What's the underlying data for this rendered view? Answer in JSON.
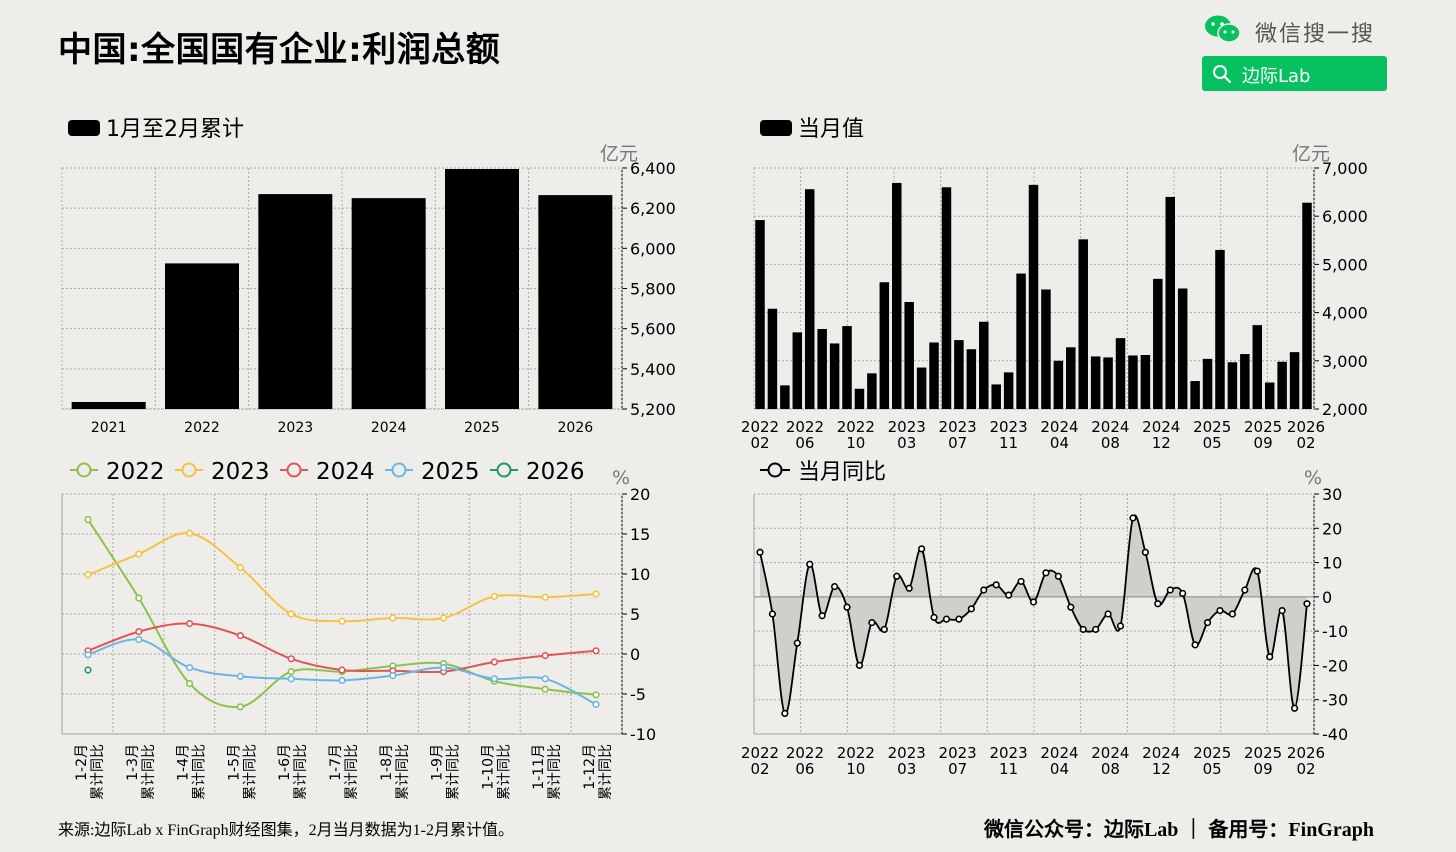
{
  "header": {
    "title": "中国:全国国有企业:利润总额",
    "wechat_search_label": "微信搜一搜",
    "search_button_label": "边际Lab"
  },
  "footer": {
    "source": "来源:边际Lab x FinGraph财经图集，2月当月数据为1-2月累计值。",
    "credit": "微信公众号：边际Lab ｜ 备用号：FinGraph"
  },
  "colors": {
    "background": "#efedea",
    "bar": "#000000",
    "s2022": "#8bc34a",
    "s2023": "#f5c243",
    "s2024": "#e05555",
    "s2025": "#6bb6e0",
    "s2026": "#1a9a6a",
    "wechat_green": "#07c160"
  },
  "chart_data": [
    {
      "type": "bar",
      "legend": "1月至2月累计",
      "unit": "亿元",
      "categories": [
        "2021",
        "2022",
        "2023",
        "2024",
        "2025",
        "2026"
      ],
      "values": [
        5235,
        5925,
        6270,
        6250,
        6395,
        6265
      ],
      "ylim": [
        5200,
        6400
      ],
      "yticks": [
        "5,200",
        "5,400",
        "5,600",
        "5,800",
        "6,000",
        "6,200",
        "6,400"
      ],
      "grid": true
    },
    {
      "type": "bar",
      "legend": "当月值",
      "unit": "亿元",
      "x": [
        "2022-02",
        "2022-03",
        "2022-04",
        "2022-05",
        "2022-06",
        "2022-07",
        "2022-08",
        "2022-09",
        "2022-10",
        "2022-11",
        "2022-12",
        "2023-02",
        "2023-03",
        "2023-04",
        "2023-05",
        "2023-06",
        "2023-07",
        "2023-08",
        "2023-09",
        "2023-10",
        "2023-11",
        "2023-12",
        "2024-02",
        "2024-03",
        "2024-04",
        "2024-05",
        "2024-06",
        "2024-07",
        "2024-08",
        "2024-09",
        "2024-10",
        "2024-11",
        "2024-12",
        "2025-02",
        "2025-03",
        "2025-04",
        "2025-05",
        "2025-06",
        "2025-07",
        "2025-08",
        "2025-09",
        "2025-10",
        "2025-11",
        "2025-12",
        "2026-02"
      ],
      "values": [
        5920,
        4080,
        2490,
        3590,
        6560,
        3660,
        3360,
        3720,
        2420,
        2740,
        4630,
        6690,
        4220,
        2860,
        3380,
        6600,
        3430,
        3240,
        3810,
        2510,
        2760,
        4810,
        6650,
        4480,
        3000,
        3280,
        5520,
        3090,
        3070,
        3470,
        3110,
        3120,
        4700,
        6400,
        4500,
        2580,
        3040,
        5300,
        2970,
        3140,
        3740,
        2550,
        2980,
        3180,
        6280
      ],
      "xticks": [
        [
          "2022",
          "02"
        ],
        [
          "2022",
          "06"
        ],
        [
          "2022",
          "10"
        ],
        [
          "2023",
          "03"
        ],
        [
          "2023",
          "07"
        ],
        [
          "2023",
          "11"
        ],
        [
          "2024",
          "04"
        ],
        [
          "2024",
          "08"
        ],
        [
          "2024",
          "12"
        ],
        [
          "2025",
          "05"
        ],
        [
          "2025",
          "09"
        ],
        [
          "2026",
          "02"
        ]
      ],
      "ylim": [
        2000,
        7000
      ],
      "yticks": [
        "2,000",
        "3,000",
        "4,000",
        "5,000",
        "6,000",
        "7,000"
      ],
      "grid": true
    },
    {
      "type": "line",
      "unit": "%",
      "categories": [
        "1-2月 累计同比",
        "1-3月 累计同比",
        "1-4月 累计同比",
        "1-5月 累计同比",
        "1-6月 累计同比",
        "1-7月 累计同比",
        "1-8月 累计同比",
        "1-9月 累计同比",
        "1-10月 累计同比",
        "1-11月 累计同比",
        "1-12月 累计同比"
      ],
      "series": [
        {
          "name": "2022",
          "values": [
            16.8,
            7.0,
            -3.7,
            -6.6,
            -2.2,
            -2.2,
            -1.5,
            -1.2,
            -3.4,
            -4.4,
            -5.1
          ]
        },
        {
          "name": "2023",
          "values": [
            9.9,
            12.5,
            15.1,
            10.8,
            5.0,
            4.1,
            4.5,
            4.5,
            7.2,
            7.1,
            7.5
          ]
        },
        {
          "name": "2024",
          "values": [
            0.4,
            2.8,
            3.8,
            2.3,
            -0.6,
            -2.0,
            -2.1,
            -2.2,
            -1.0,
            -0.2,
            0.4
          ]
        },
        {
          "name": "2025",
          "values": [
            -0.1,
            1.8,
            -1.7,
            -2.8,
            -3.1,
            -3.3,
            -2.7,
            -1.7,
            -3.1,
            -3.1,
            -6.3
          ]
        },
        {
          "name": "2026",
          "values": [
            -2.0,
            null,
            null,
            null,
            null,
            null,
            null,
            null,
            null,
            null,
            null
          ]
        }
      ],
      "ylim": [
        -10,
        20
      ],
      "yticks": [
        "-10",
        "-5",
        "0",
        "5",
        "10",
        "15",
        "20"
      ],
      "legend_position": "top-left",
      "grid": true
    },
    {
      "type": "area",
      "legend": "当月同比",
      "unit": "%",
      "x": [
        "2022-02",
        "2022-03",
        "2022-04",
        "2022-05",
        "2022-06",
        "2022-07",
        "2022-08",
        "2022-09",
        "2022-10",
        "2022-11",
        "2022-12",
        "2023-02",
        "2023-03",
        "2023-04",
        "2023-05",
        "2023-06",
        "2023-07",
        "2023-08",
        "2023-09",
        "2023-10",
        "2023-11",
        "2023-12",
        "2024-02",
        "2024-03",
        "2024-04",
        "2024-05",
        "2024-06",
        "2024-07",
        "2024-08",
        "2024-09",
        "2024-10",
        "2024-11",
        "2024-12",
        "2025-02",
        "2025-03",
        "2025-04",
        "2025-05",
        "2025-06",
        "2025-07",
        "2025-08",
        "2025-09",
        "2025-10",
        "2025-11",
        "2025-12",
        "2026-02"
      ],
      "values": [
        13,
        -5,
        -34,
        -13.5,
        9.5,
        -5.5,
        3,
        -3,
        -20,
        -7.5,
        -9.5,
        6,
        2.5,
        14,
        -6,
        -6.5,
        -6.5,
        -3.5,
        2,
        3.5,
        0.5,
        4.5,
        -1.5,
        7,
        6,
        -3,
        -9.5,
        -9.5,
        -5,
        -8.5,
        23,
        13,
        -2,
        2,
        1,
        -14,
        -7.5,
        -4,
        -5,
        2,
        7.5,
        -17.5,
        -4,
        -32.5,
        -2
      ],
      "xticks": [
        [
          "2022",
          "02"
        ],
        [
          "2022",
          "06"
        ],
        [
          "2022",
          "10"
        ],
        [
          "2023",
          "03"
        ],
        [
          "2023",
          "07"
        ],
        [
          "2023",
          "11"
        ],
        [
          "2024",
          "04"
        ],
        [
          "2024",
          "08"
        ],
        [
          "2024",
          "12"
        ],
        [
          "2025",
          "05"
        ],
        [
          "2025",
          "09"
        ],
        [
          "2026",
          "02"
        ]
      ],
      "ylim": [
        -40,
        30
      ],
      "yticks": [
        "-40",
        "-30",
        "-20",
        "-10",
        "0",
        "10",
        "20",
        "30"
      ],
      "grid": true
    }
  ]
}
